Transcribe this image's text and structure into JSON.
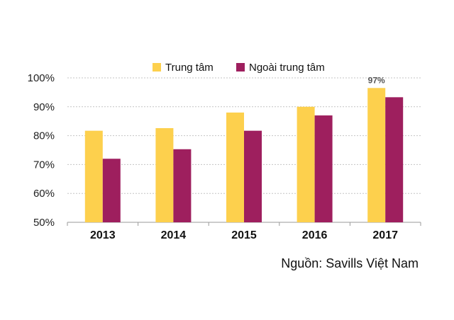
{
  "chart_data": {
    "type": "bar",
    "categories": [
      "2013",
      "2014",
      "2015",
      "2016",
      "2017"
    ],
    "series": [
      {
        "name": "Trung tâm",
        "color": "#FDD04D",
        "values": [
          81.7,
          82.6,
          88.0,
          90.0,
          96.5
        ]
      },
      {
        "name": "Ngoài trung tâm",
        "color": "#9E1F5E",
        "values": [
          72.0,
          75.3,
          81.7,
          87.0,
          93.3
        ]
      }
    ],
    "yticks": [
      "50%",
      "60%",
      "70%",
      "80%",
      "90%",
      "100%"
    ],
    "ylim": [
      50,
      100
    ],
    "grid": true,
    "legend_position": "top-center",
    "annotations": [
      {
        "category": "2017",
        "series": "Trung tâm",
        "text": "97%"
      }
    ]
  },
  "source": "Nguồn: Savills Việt Nam"
}
